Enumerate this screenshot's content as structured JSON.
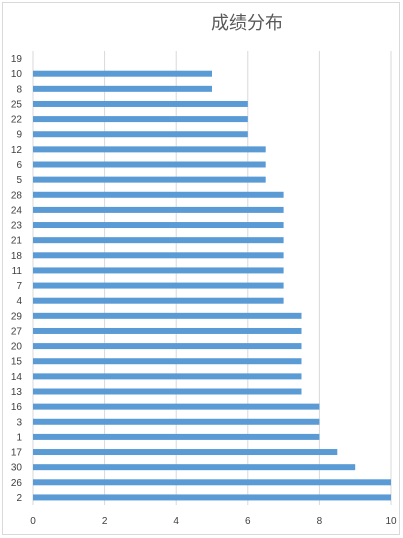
{
  "chart_data": {
    "type": "bar",
    "orientation": "horizontal",
    "title": "成绩分布",
    "xlabel": "",
    "ylabel": "",
    "xlim": [
      0,
      10
    ],
    "x_ticks": [
      0,
      2,
      4,
      6,
      8,
      10
    ],
    "grid": true,
    "legend": "none",
    "bar_color": "#5b9bd5",
    "categories": [
      "2",
      "26",
      "30",
      "17",
      "1",
      "3",
      "16",
      "13",
      "14",
      "15",
      "20",
      "27",
      "29",
      "4",
      "7",
      "11",
      "18",
      "21",
      "23",
      "24",
      "28",
      "5",
      "6",
      "12",
      "9",
      "22",
      "25",
      "8",
      "10",
      "19"
    ],
    "values": [
      10,
      10,
      9,
      8.5,
      8,
      8,
      8,
      7.5,
      7.5,
      7.5,
      7.5,
      7.5,
      7.5,
      7,
      7,
      7,
      7,
      7,
      7,
      7,
      7,
      6.5,
      6.5,
      6.5,
      6,
      6,
      6,
      5,
      5,
      0
    ]
  }
}
